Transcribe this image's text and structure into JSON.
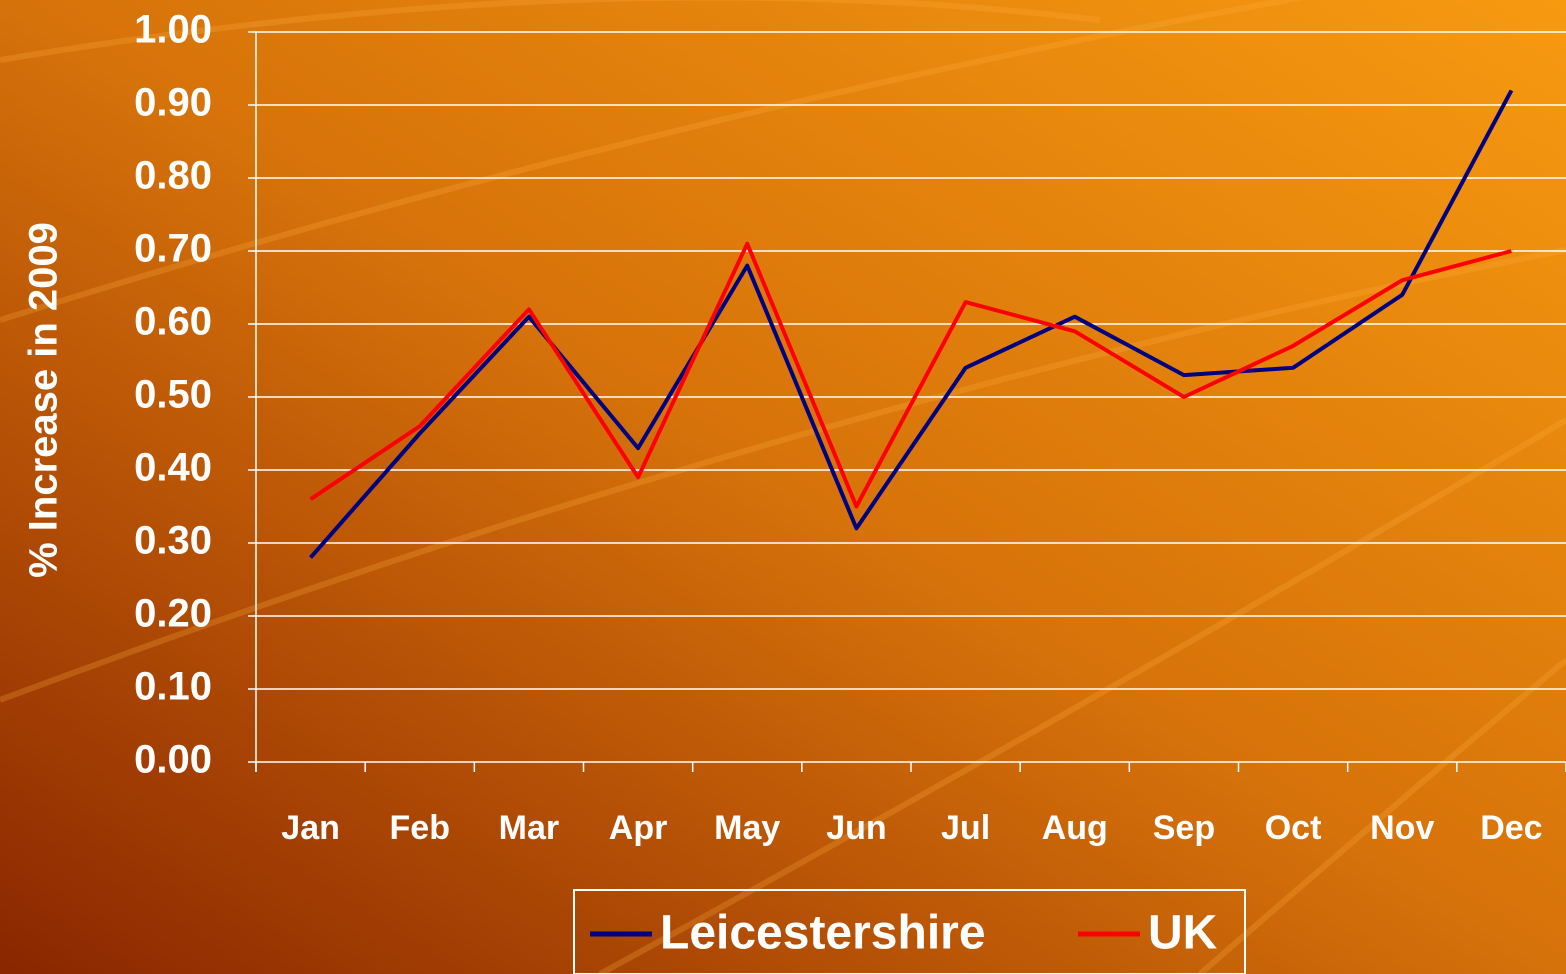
{
  "chart_data": {
    "type": "line",
    "y_label": "% Increase in 2009",
    "categories": [
      "Jan",
      "Feb",
      "Mar",
      "Apr",
      "May",
      "Jun",
      "Jul",
      "Aug",
      "Sep",
      "Oct",
      "Nov",
      "Dec"
    ],
    "series": [
      {
        "name": "Leicestershire",
        "color": "#000080",
        "values": [
          0.28,
          0.45,
          0.61,
          0.43,
          0.68,
          0.32,
          0.54,
          0.61,
          0.53,
          0.54,
          0.64,
          0.92
        ]
      },
      {
        "name": "UK",
        "color": "#ff0000",
        "values": [
          0.36,
          0.46,
          0.62,
          0.39,
          0.71,
          0.35,
          0.63,
          0.59,
          0.5,
          0.57,
          0.66,
          0.7
        ]
      }
    ],
    "ylim": [
      0,
      1
    ],
    "yticks": [
      {
        "value": 0,
        "label": "0.00"
      },
      {
        "value": 0.1,
        "label": "0.10"
      },
      {
        "value": 0.2,
        "label": "0.20"
      },
      {
        "value": 0.3,
        "label": "0.30"
      },
      {
        "value": 0.4,
        "label": "0.40"
      },
      {
        "value": 0.5,
        "label": "0.50"
      },
      {
        "value": 0.6,
        "label": "0.60"
      },
      {
        "value": 0.7,
        "label": "0.70"
      },
      {
        "value": 0.8,
        "label": "0.80"
      },
      {
        "value": 0.9,
        "label": "0.90"
      },
      {
        "value": 1,
        "label": "1.00"
      }
    ],
    "grid": true
  }
}
